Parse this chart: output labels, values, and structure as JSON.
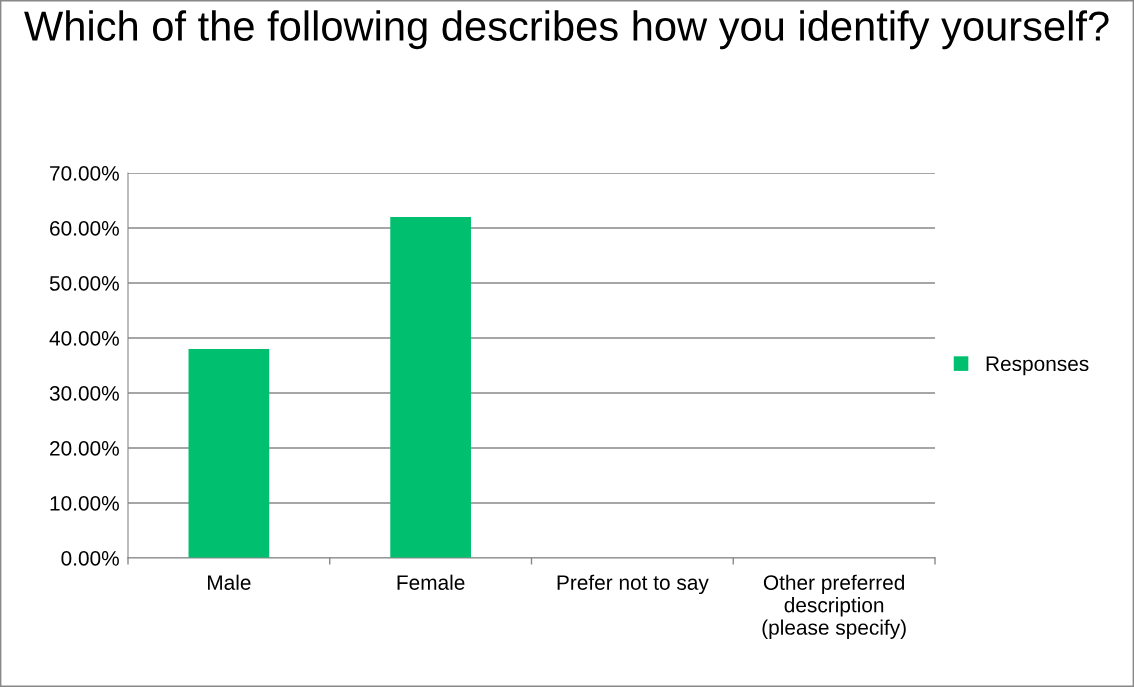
{
  "chart_data": {
    "type": "bar",
    "title": "Which of the following describes how you identify yourself?",
    "categories": [
      "Male",
      "Female",
      "Prefer not to say",
      "Other preferred\ndescription\n(please specify)"
    ],
    "series": [
      {
        "name": "Responses",
        "color": "#00c06f",
        "values": [
          38,
          62,
          0,
          0
        ]
      }
    ],
    "ylim": [
      0,
      70
    ],
    "yticks": [
      {
        "value": 0,
        "label": "0.00%"
      },
      {
        "value": 10,
        "label": "10.00%"
      },
      {
        "value": 20,
        "label": "20.00%"
      },
      {
        "value": 30,
        "label": "30.00%"
      },
      {
        "value": 40,
        "label": "40.00%"
      },
      {
        "value": 50,
        "label": "50.00%"
      },
      {
        "value": 60,
        "label": "60.00%"
      },
      {
        "value": 70,
        "label": "70.00%"
      }
    ],
    "grid": "y",
    "legend": "right"
  }
}
